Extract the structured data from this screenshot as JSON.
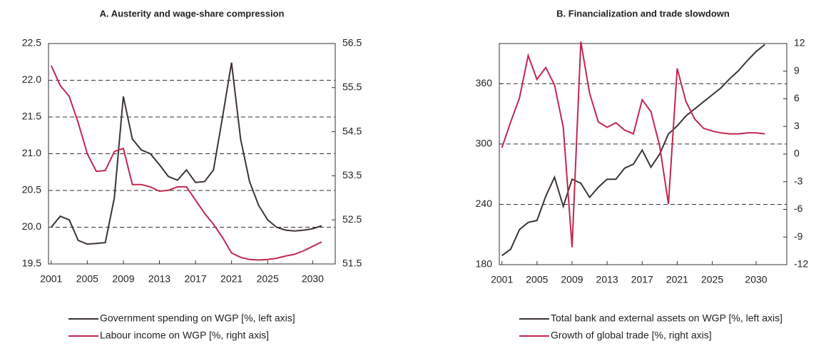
{
  "chart_data": [
    {
      "type": "line",
      "title": "A. Austerity and wage-share compression",
      "x": [
        2001,
        2002,
        2003,
        2004,
        2005,
        2006,
        2007,
        2008,
        2009,
        2010,
        2011,
        2012,
        2013,
        2014,
        2015,
        2016,
        2017,
        2018,
        2019,
        2020,
        2021,
        2022,
        2023,
        2024,
        2025,
        2026,
        2027,
        2028,
        2029,
        2030,
        2031
      ],
      "xlim": [
        2000.7,
        2032.5
      ],
      "xticks": [
        2001,
        2005,
        2009,
        2013,
        2017,
        2021,
        2025,
        2030
      ],
      "ylim": [
        19.5,
        22.5
      ],
      "yticks": [
        19.5,
        {
          "value": 20,
          "label": "20.0"
        },
        20.5,
        {
          "value": 21,
          "label": "21.0"
        },
        21.5,
        {
          "value": 22,
          "label": "22.0"
        },
        22.5
      ],
      "y2lim": [
        51.5,
        56.5
      ],
      "y2ticks": [
        51.5,
        52.5,
        53.5,
        54.5,
        55.5,
        56.5
      ],
      "grid": true,
      "legend": "bottom",
      "series": [
        {
          "name": "Government spending on WGP [%, left axis]",
          "color": "#3d3533",
          "axis": "y",
          "values": [
            20.0,
            20.15,
            20.1,
            19.82,
            19.77,
            19.78,
            19.79,
            20.4,
            21.78,
            21.2,
            21.05,
            21.0,
            20.85,
            20.69,
            20.64,
            20.78,
            20.61,
            20.62,
            20.78,
            21.5,
            22.24,
            21.2,
            20.62,
            20.3,
            20.1,
            20.0,
            19.96,
            19.95,
            19.96,
            19.98,
            20.02
          ]
        },
        {
          "name": "Labour income on WGP [%, right axis]",
          "color": "#c0284f",
          "axis": "y2",
          "values": [
            56.0,
            55.55,
            55.3,
            54.7,
            54.0,
            53.6,
            53.62,
            54.05,
            54.12,
            53.3,
            53.3,
            53.25,
            53.15,
            53.17,
            53.25,
            53.25,
            52.95,
            52.65,
            52.4,
            52.1,
            51.75,
            51.65,
            51.6,
            51.59,
            51.6,
            51.63,
            51.68,
            51.72,
            51.8,
            51.9,
            52.0
          ]
        }
      ]
    },
    {
      "type": "line",
      "title": "B. Financialization and trade slowdown",
      "x": [
        2001,
        2002,
        2003,
        2004,
        2005,
        2006,
        2007,
        2008,
        2009,
        2010,
        2011,
        2012,
        2013,
        2014,
        2015,
        2016,
        2017,
        2018,
        2019,
        2020,
        2021,
        2022,
        2023,
        2024,
        2025,
        2026,
        2027,
        2028,
        2029,
        2030,
        2031,
        2032
      ],
      "xlim": [
        2000.7,
        2033.5
      ],
      "xticks": [
        2001,
        2005,
        2009,
        2013,
        2017,
        2021,
        2025,
        2030
      ],
      "ylim": [
        180,
        400
      ],
      "yticks": [
        180,
        240,
        300,
        360
      ],
      "y2lim": [
        -12,
        12
      ],
      "y2ticks": [
        -12,
        -9,
        -6,
        -3,
        0,
        3,
        6,
        9,
        12
      ],
      "grid": true,
      "legend": "bottom",
      "series": [
        {
          "name": "Total bank and external assets on WGP [%, left axis]",
          "color": "#3d3533",
          "axis": "y",
          "values": [
            189,
            195.5,
            215,
            222,
            224,
            248,
            267,
            238,
            265,
            261,
            247,
            257,
            265,
            265,
            276,
            280,
            294,
            277,
            290,
            310,
            318,
            328,
            335,
            342,
            349,
            356,
            365,
            373,
            383,
            392,
            399,
            null
          ]
        },
        {
          "name": "Growth of global trade [%, right axis]",
          "color": "#c0284f",
          "axis": "y2",
          "values": [
            0.7,
            3.5,
            6.1,
            10.7,
            8.1,
            9.4,
            7.5,
            2.9,
            -10.1,
            12.2,
            6.6,
            3.5,
            2.9,
            3.4,
            2.6,
            2.2,
            5.9,
            4.6,
            0.9,
            -5.4,
            9.3,
            5.7,
            3.8,
            2.8,
            2.5,
            2.3,
            2.2,
            2.2,
            2.3,
            2.3,
            2.2,
            null
          ]
        }
      ]
    }
  ]
}
